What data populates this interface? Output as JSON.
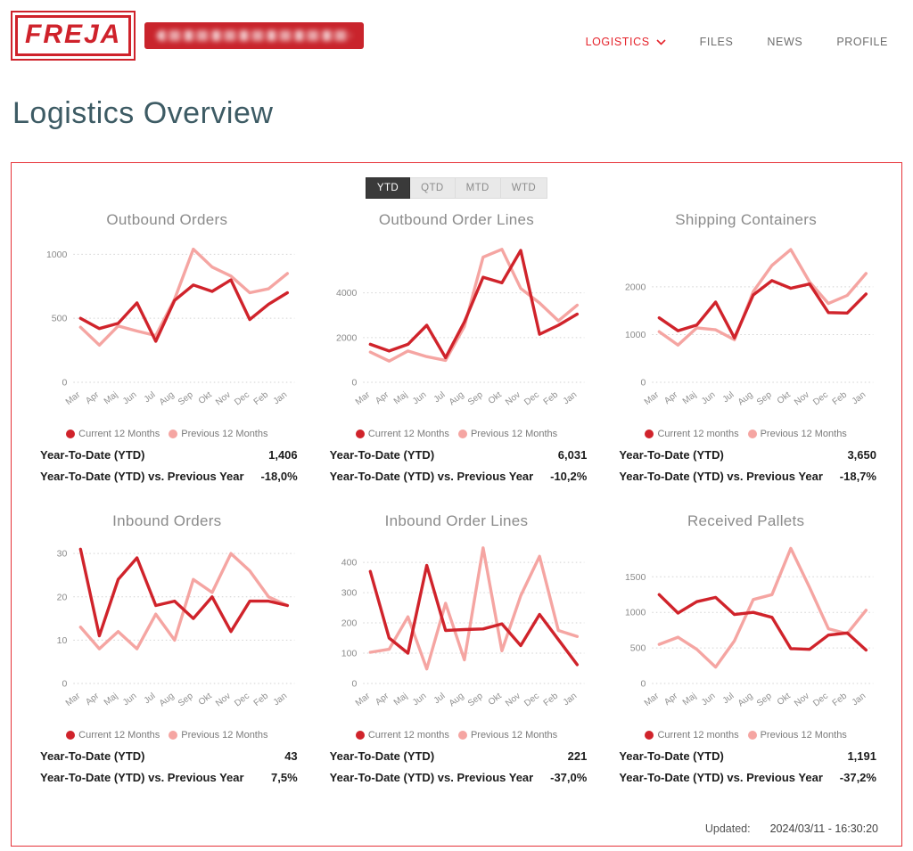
{
  "header": {
    "logo_text": "FREJA",
    "customer_badge": "redacted",
    "nav": {
      "logistics": "LOGISTICS",
      "files": "FILES",
      "news": "NEWS",
      "profile": "PROFILE"
    }
  },
  "page_title": "Logistics Overview",
  "tabs": {
    "ytd": "YTD",
    "qtd": "QTD",
    "mtd": "MTD",
    "wtd": "WTD",
    "active": "YTD"
  },
  "colors": {
    "brand_red": "#cf222b",
    "nav_active_red": "#e5232b",
    "panel_border": "#e63238",
    "current_line": "#d0232b",
    "previous_line": "#f5a5a2",
    "title_teal": "#3d5b64",
    "chart_title_gray": "#8b8b8b"
  },
  "chart_data": [
    {
      "type": "line",
      "title": "Outbound Orders",
      "categories": [
        "Mar",
        "Apr",
        "Maj",
        "Jun",
        "Jul",
        "Aug",
        "Sep",
        "Okt",
        "Nov",
        "Dec",
        "Feb",
        "Jan"
      ],
      "ylim": [
        0,
        1100
      ],
      "yticks": [
        0,
        500,
        1000
      ],
      "series": [
        {
          "name": "Current 12 Months",
          "color": "#d0232b",
          "values": [
            500,
            420,
            460,
            620,
            320,
            640,
            760,
            710,
            800,
            490,
            610,
            700
          ]
        },
        {
          "name": "Previous 12 Months",
          "color": "#f5a5a2",
          "values": [
            430,
            290,
            440,
            400,
            365,
            650,
            1040,
            900,
            830,
            700,
            730,
            850
          ]
        }
      ],
      "kpis": [
        {
          "label": "Year-To-Date (YTD)",
          "value": "1,406"
        },
        {
          "label": "Year-To-Date (YTD) vs. Previous Year",
          "value": "-18,0%"
        }
      ]
    },
    {
      "type": "line",
      "title": "Outbound Order Lines",
      "categories": [
        "Mar",
        "Apr",
        "Maj",
        "Jun",
        "Jul",
        "Aug",
        "Sep",
        "Okt",
        "Nov",
        "Dec",
        "Feb",
        "Jan"
      ],
      "ylim": [
        0,
        6300
      ],
      "yticks": [
        0,
        2000,
        4000
      ],
      "series": [
        {
          "name": "Current 12 Months",
          "color": "#d0232b",
          "values": [
            1700,
            1400,
            1700,
            2550,
            1100,
            2700,
            4700,
            4450,
            5900,
            2150,
            2550,
            3050
          ]
        },
        {
          "name": "Previous 12 Months",
          "color": "#f5a5a2",
          "values": [
            1350,
            950,
            1400,
            1150,
            980,
            2500,
            5600,
            5950,
            4200,
            3550,
            2750,
            3450
          ]
        }
      ],
      "kpis": [
        {
          "label": "Year-To-Date (YTD)",
          "value": "6,031"
        },
        {
          "label": "Year-To-Date (YTD) vs. Previous Year",
          "value": "-10,2%"
        }
      ]
    },
    {
      "type": "line",
      "title": "Shipping Containers",
      "categories": [
        "Mar",
        "Apr",
        "Maj",
        "Jun",
        "Jul",
        "Aug",
        "Sep",
        "Okt",
        "Nov",
        "Dec",
        "Feb",
        "Jan"
      ],
      "ylim": [
        0,
        2950
      ],
      "yticks": [
        0,
        1000,
        2000
      ],
      "series": [
        {
          "name": "Current 12 months",
          "color": "#d0232b",
          "values": [
            1350,
            1080,
            1200,
            1680,
            930,
            1830,
            2130,
            1970,
            2060,
            1460,
            1450,
            1850
          ]
        },
        {
          "name": "Previous 12 Months",
          "color": "#f5a5a2",
          "values": [
            1060,
            780,
            1140,
            1100,
            890,
            1900,
            2450,
            2780,
            2100,
            1650,
            1820,
            2280
          ]
        }
      ],
      "kpis": [
        {
          "label": "Year-To-Date (YTD)",
          "value": "3,650"
        },
        {
          "label": "Year-To-Date (YTD) vs. Previous Year",
          "value": "-18,7%"
        }
      ]
    },
    {
      "type": "line",
      "title": "Inbound Orders",
      "categories": [
        "Mar",
        "Apr",
        "Maj",
        "Jun",
        "Jul",
        "Aug",
        "Sep",
        "Okt",
        "Nov",
        "Dec",
        "Feb",
        "Jan"
      ],
      "ylim": [
        0,
        32.5
      ],
      "yticks": [
        0,
        10,
        20,
        30
      ],
      "series": [
        {
          "name": "Current 12 Months",
          "color": "#d0232b",
          "values": [
            31,
            11,
            24,
            29,
            18,
            19,
            15,
            20,
            12,
            19,
            19,
            18
          ]
        },
        {
          "name": "Previous 12 Months",
          "color": "#f5a5a2",
          "values": [
            13,
            8,
            12,
            8,
            16,
            10,
            24,
            21,
            30,
            26,
            20,
            18
          ]
        }
      ],
      "kpis": [
        {
          "label": "Year-To-Date (YTD)",
          "value": "43"
        },
        {
          "label": "Year-To-Date (YTD) vs. Previous Year",
          "value": "7,5%"
        }
      ]
    },
    {
      "type": "line",
      "title": "Inbound Order Lines",
      "categories": [
        "Mar",
        "Apr",
        "Maj",
        "Jun",
        "Jul",
        "Aug",
        "Sep",
        "Okt",
        "Nov",
        "Dec",
        "Feb",
        "Jan"
      ],
      "ylim": [
        0,
        465
      ],
      "yticks": [
        0,
        100,
        200,
        300,
        400
      ],
      "series": [
        {
          "name": "Current 12 months",
          "color": "#d0232b",
          "values": [
            370,
            150,
            100,
            390,
            175,
            178,
            180,
            197,
            125,
            228,
            145,
            62
          ]
        },
        {
          "name": "Previous 12 Months",
          "color": "#f5a5a2",
          "values": [
            103,
            113,
            220,
            48,
            265,
            78,
            448,
            108,
            290,
            420,
            175,
            155
          ]
        }
      ],
      "kpis": [
        {
          "label": "Year-To-Date (YTD)",
          "value": "221"
        },
        {
          "label": "Year-To-Date (YTD) vs. Previous Year",
          "value": "-37,0%"
        }
      ]
    },
    {
      "type": "line",
      "title": "Received Pallets",
      "categories": [
        "Mar",
        "Apr",
        "Maj",
        "Jun",
        "Jul",
        "Aug",
        "Sep",
        "Okt",
        "Nov",
        "Dec",
        "Feb",
        "Jan"
      ],
      "ylim": [
        0,
        1980
      ],
      "yticks": [
        0,
        500,
        1000,
        1500
      ],
      "series": [
        {
          "name": "Current 12 months",
          "color": "#d0232b",
          "values": [
            1250,
            990,
            1150,
            1210,
            970,
            1000,
            930,
            490,
            480,
            680,
            710,
            470
          ]
        },
        {
          "name": "Previous 12 Months",
          "color": "#f5a5a2",
          "values": [
            550,
            650,
            480,
            230,
            600,
            1180,
            1250,
            1900,
            1350,
            770,
            700,
            1030
          ]
        }
      ],
      "kpis": [
        {
          "label": "Year-To-Date (YTD)",
          "value": "1,191"
        },
        {
          "label": "Year-To-Date (YTD) vs. Previous Year",
          "value": "-37,2%"
        }
      ]
    }
  ],
  "footer": {
    "updated_label": "Updated:",
    "updated_value": "2024/03/11 - 16:30:20"
  }
}
